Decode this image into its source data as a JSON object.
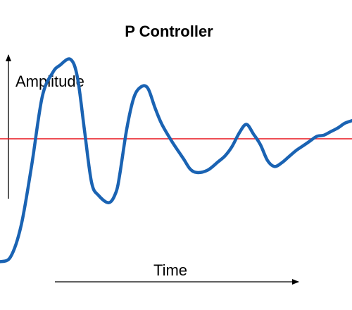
{
  "chart_data": {
    "type": "line",
    "title": "P Controller",
    "xlabel": "Time",
    "ylabel": "Amplitude",
    "xlim": [
      0,
      100
    ],
    "ylim": [
      -1.2,
      1.4
    ],
    "setpoint": {
      "value": 0,
      "color": "#e8141c"
    },
    "series": [
      {
        "color": "#1a63b3",
        "x": [
          0,
          3,
          6,
          9,
          12,
          15,
          17,
          20,
          22,
          24,
          26,
          28,
          31,
          33,
          34,
          36,
          38,
          40,
          42,
          44,
          46,
          49,
          52,
          54,
          56,
          59,
          62,
          64,
          66,
          68,
          70,
          72,
          74,
          76,
          78,
          80,
          82,
          84,
          86,
          88,
          90,
          92,
          94,
          96,
          98,
          100
        ],
        "y": [
          -1.02,
          -0.98,
          -0.72,
          -0.22,
          0.35,
          0.55,
          0.61,
          0.66,
          0.51,
          0.07,
          -0.36,
          -0.47,
          -0.53,
          -0.44,
          -0.3,
          0.08,
          0.34,
          0.43,
          0.42,
          0.26,
          0.12,
          -0.03,
          -0.16,
          -0.25,
          -0.28,
          -0.26,
          -0.19,
          -0.14,
          -0.06,
          0.05,
          0.12,
          0.04,
          -0.05,
          -0.18,
          -0.23,
          -0.2,
          -0.15,
          -0.1,
          -0.06,
          -0.02,
          0.02,
          0.03,
          0.06,
          0.09,
          0.13,
          0.15
        ]
      }
    ]
  }
}
